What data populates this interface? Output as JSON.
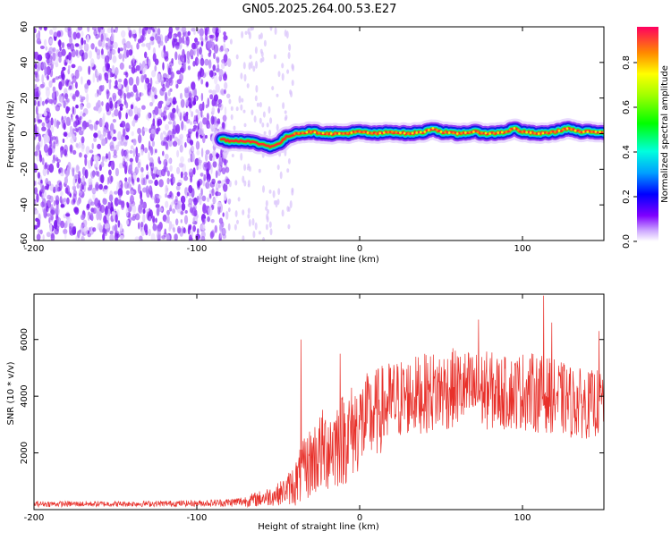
{
  "title": "GN05.2025.264.00.53.E27",
  "colors": {
    "snr_line": "#e8312b",
    "spectrogram_low": "#7f00ff",
    "spectrogram_high": "#ff0000",
    "frame": "#000000"
  },
  "chart_data": [
    {
      "id": "spectrogram",
      "type": "heatmap",
      "xlabel": "Height of straight line (km)",
      "ylabel": "Frequency (Hz)",
      "xlim": [
        -200,
        150
      ],
      "ylim": [
        -60,
        60
      ],
      "xticks": [
        -200,
        -100,
        0,
        100
      ],
      "xtick_labels": [
        "-200",
        "-100",
        "0",
        "100"
      ],
      "yticks": [
        -60,
        -40,
        -20,
        0,
        20,
        40,
        60
      ],
      "ytick_labels": [
        "-60",
        "-40",
        "-20",
        "0",
        "20",
        "40",
        "60"
      ],
      "noise_region_x": [
        -200,
        -80
      ],
      "ridge": {
        "x": [
          -85,
          -80,
          -70,
          -60,
          -55,
          -50,
          -45,
          -40,
          -30,
          -20,
          -10,
          0,
          10,
          20,
          30,
          40,
          45,
          50,
          60,
          70,
          80,
          90,
          95,
          100,
          110,
          120,
          128,
          135,
          150
        ],
        "y": [
          -3,
          -4,
          -4,
          -6,
          -7,
          -6,
          -2,
          0,
          1,
          0,
          0,
          1,
          0,
          1,
          0,
          1,
          3,
          1,
          0,
          1,
          0,
          1,
          3,
          1,
          0,
          1,
          3,
          1,
          1
        ]
      },
      "colorbar": {
        "label": "Normalized spectral amplitude",
        "ticks": [
          0.0,
          0.2,
          0.4,
          0.6,
          0.8
        ],
        "tick_labels": [
          "0.0",
          "0.2",
          "0.4",
          "0.6",
          "0.8"
        ],
        "range": [
          0,
          0.96
        ]
      }
    },
    {
      "id": "snr",
      "type": "line",
      "xlabel": "Height of straight line (km)",
      "ylabel": "SNR (10 * v/v)",
      "xlim": [
        -200,
        150
      ],
      "ylim": [
        0,
        7600
      ],
      "xticks": [
        -200,
        -100,
        0,
        100
      ],
      "xtick_labels": [
        "-200",
        "-100",
        "0",
        "100"
      ],
      "yticks": [
        2000,
        4000,
        6000
      ],
      "ytick_labels": [
        "2000",
        "4000",
        "6000"
      ],
      "envelope": {
        "x": [
          -200,
          -150,
          -100,
          -80,
          -70,
          -60,
          -50,
          -45,
          -40,
          -35,
          -30,
          -20,
          -10,
          0,
          10,
          20,
          30,
          40,
          50,
          60,
          70,
          80,
          90,
          100,
          110,
          120,
          130,
          140,
          150
        ],
        "mean": [
          200,
          200,
          220,
          250,
          300,
          400,
          550,
          700,
          900,
          1300,
          1700,
          2200,
          2500,
          3000,
          3400,
          3800,
          4000,
          4100,
          4200,
          4300,
          4200,
          4200,
          4100,
          4200,
          4100,
          4000,
          3800,
          3700,
          3800
        ],
        "spread": [
          100,
          100,
          110,
          150,
          200,
          300,
          400,
          500,
          800,
          1100,
          1300,
          1600,
          1700,
          1700,
          1600,
          1500,
          1400,
          1400,
          1500,
          1400,
          1400,
          1400,
          1300,
          1400,
          1400,
          1300,
          1300,
          1200,
          1200
        ]
      },
      "spikes": [
        {
          "x": -36,
          "y": 6000
        },
        {
          "x": -12,
          "y": 5500
        },
        {
          "x": 73,
          "y": 6700
        },
        {
          "x": 113,
          "y": 7550
        },
        {
          "x": 118,
          "y": 6600
        },
        {
          "x": 147,
          "y": 6300
        }
      ]
    }
  ]
}
